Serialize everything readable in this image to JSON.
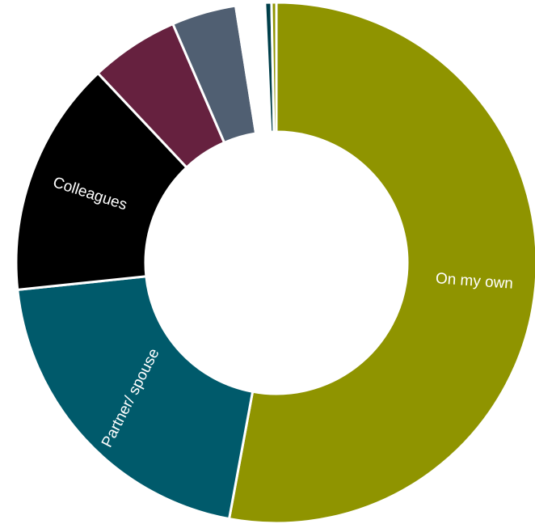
{
  "chart_data": {
    "type": "pie",
    "variant": "donut",
    "title": "",
    "categories": [
      "On my own",
      "Partner/ spouse",
      "Colleagues",
      "",
      "",
      "",
      "",
      ""
    ],
    "values": [
      52.8,
      20.4,
      14.6,
      5.5,
      4.0,
      1.8,
      0.4,
      0.3
    ],
    "colors": [
      "#8f9400",
      "#005a6b",
      "#000000",
      "#66213f",
      "#505f72",
      "#ffffff",
      "#003f4a",
      "#8f9400"
    ],
    "data_labels": [
      {
        "text": "On my own",
        "label_color": "#ffffff"
      },
      {
        "text": "Partner/ spouse",
        "label_color": "#ffffff"
      },
      {
        "text": "Colleagues",
        "label_color": "#ffffff"
      }
    ],
    "legend": "none"
  }
}
